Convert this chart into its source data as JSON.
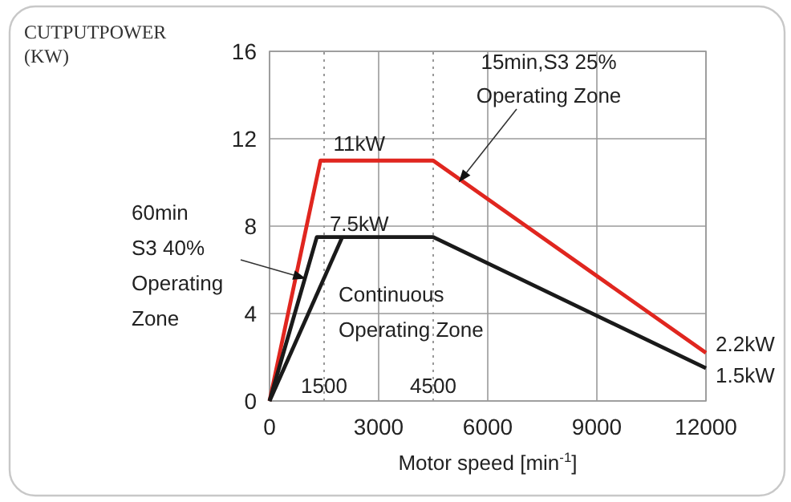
{
  "chart_data": {
    "type": "line",
    "ylabel": "CUTPUTPOWER\n(KW)",
    "xlabel": "Motor speed [min$^{-1}$]",
    "xlim": [
      0,
      12000
    ],
    "xticks": [
      0,
      3000,
      6000,
      9000,
      12000
    ],
    "ylim": [
      0,
      16
    ],
    "yticks": [
      0,
      4,
      8,
      12,
      16
    ],
    "grid": true,
    "line_style": "solid",
    "marker": "none",
    "series": [
      {
        "color": "#e0261f",
        "x": [
          0,
          1400,
          4500,
          12000
        ],
        "values": [
          0,
          11,
          11,
          2.2
        ]
      },
      {
        "color": "#1a1a1a",
        "x": [
          0,
          1300,
          4500,
          12000
        ],
        "values": [
          0,
          7.5,
          7.5,
          1.5
        ]
      },
      {
        "color": "#1a1a1a",
        "x": [
          0,
          2000
        ],
        "values": [
          0,
          7.5
        ]
      }
    ],
    "ref_lines": [
      {
        "axis": "x",
        "value": 1500,
        "label": "1500",
        "color": "#999999",
        "line_style": "dotted"
      },
      {
        "axis": "x",
        "value": 4500,
        "label": "4500",
        "color": "#999999",
        "line_style": "dotted"
      }
    ],
    "annotations": [
      {
        "text": "11kW",
        "x": 1400,
        "y": 11
      },
      {
        "text": "7.5kW",
        "x": 1300,
        "y": 7.5
      },
      {
        "text": "2.2kW",
        "x": 12000,
        "y": 2.2
      },
      {
        "text": "1.5kW",
        "x": 12000,
        "y": 1.5
      },
      {
        "text": "15min,S3 25%\nOperating Zone",
        "x": 5200,
        "y": 10
      },
      {
        "text": "60min\nS3 40%\nOperating\nZone",
        "x": 1000,
        "y": 5.6
      },
      "Continuous\nOperating Zone"
    ]
  }
}
